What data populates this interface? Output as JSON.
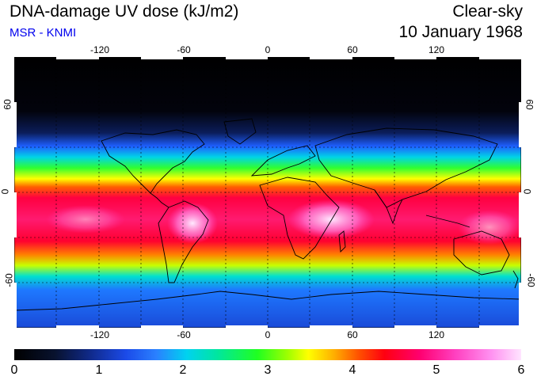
{
  "header": {
    "title": "DNA-damage UV dose (kJ/m2)",
    "source": "MSR - KNMI",
    "condition": "Clear-sky",
    "date": "10 January 1968"
  },
  "map": {
    "projection": "plate-carree",
    "x_ticks": [
      "-120",
      "-60",
      "0",
      "60",
      "120"
    ],
    "y_ticks_left": [
      "60",
      "0",
      "-60"
    ],
    "y_ticks_right": [
      "60",
      "0",
      "-60"
    ],
    "grid": true,
    "grid_style": "dotted"
  },
  "colorbar": {
    "labels": [
      "0",
      "1",
      "2",
      "3",
      "4",
      "5",
      "6"
    ],
    "range": [
      0,
      6
    ],
    "colors": [
      "#000000",
      "#102a8a",
      "#2a80ff",
      "#00d2f0",
      "#20ff20",
      "#ffff00",
      "#ff5000",
      "#ff0010",
      "#ff40c0",
      "#ffe4ff"
    ]
  }
}
